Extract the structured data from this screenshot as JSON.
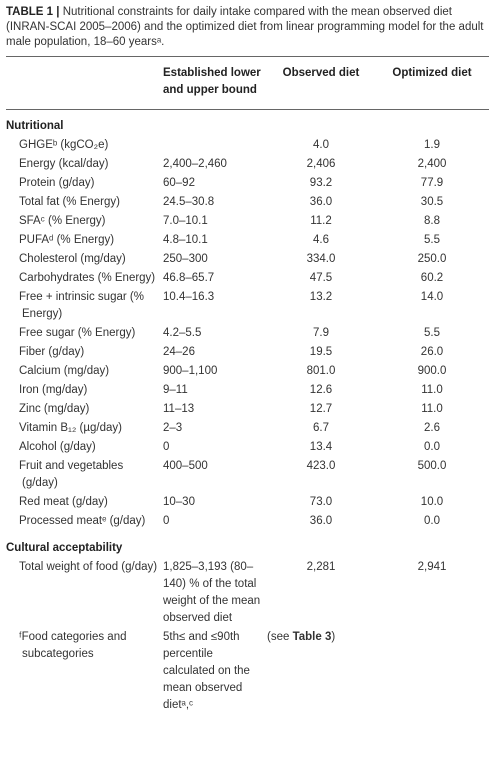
{
  "caption": {
    "label": "TABLE 1 |",
    "text": "Nutritional constraints for daily intake compared with the mean observed diet (INRAN-SCAI 2005–2006) and the optimized diet from linear programming model for the adult male population, 18–60 yearsᵃ."
  },
  "table": {
    "header": [
      "Established lower and upper bound",
      "Observed diet",
      "Optimized diet"
    ],
    "sections": [
      {
        "title": "Nutritional",
        "rows": [
          [
            "GHGEᵇ (kgCO₂e)",
            null,
            "4.0",
            "1.9"
          ],
          [
            "Energy (kcal/day)",
            "2,400–2,460",
            "2,406",
            "2,400"
          ],
          [
            "Protein (g/day)",
            "60–92",
            "93.2",
            "77.9"
          ],
          [
            "Total fat (% Energy)",
            "24.5–30.8",
            "36.0",
            "30.5"
          ],
          [
            "SFAᶜ (% Energy)",
            "7.0–10.1",
            "11.2",
            "8.8"
          ],
          [
            "PUFAᵈ (% Energy)",
            "4.8–10.1",
            "4.6",
            "5.5"
          ],
          [
            "Cholesterol (mg/day)",
            "250–300",
            "334.0",
            "250.0"
          ],
          [
            "Carbohydrates (% Energy)",
            "46.8–65.7",
            "47.5",
            "60.2"
          ],
          [
            "Free + intrinsic sugar (% Energy)",
            "10.4–16.3",
            "13.2",
            "14.0"
          ],
          [
            "Free sugar (% Energy)",
            "4.2–5.5",
            "7.9",
            "5.5"
          ],
          [
            "Fiber (g/day)",
            "24–26",
            "19.5",
            "26.0"
          ],
          [
            "Calcium (mg/day)",
            "900–1,100",
            "801.0",
            "900.0"
          ],
          [
            "Iron (mg/day)",
            "9–11",
            "12.6",
            "11.0"
          ],
          [
            "Zinc (mg/day)",
            "11–13",
            "12.7",
            "11.0"
          ],
          [
            "Vitamin B₁₂ (µg/day)",
            "2–3",
            "6.7",
            "2.6"
          ],
          [
            "Alcohol (g/day)",
            "0",
            "13.4",
            "0.0"
          ],
          [
            "Fruit and vegetables (g/day)",
            "400–500",
            "423.0",
            "500.0"
          ],
          [
            "Red meat (g/day)",
            "10–30",
            "73.0",
            "10.0"
          ],
          [
            "Processed meatᵉ (g/day)",
            "0",
            "36.0",
            "0.0"
          ]
        ]
      },
      {
        "title": "Cultural acceptability",
        "rows": [
          [
            "Total weight of food (g/day)",
            "1,825–3,193 (80–140) % of the total weight of the mean observed diet",
            "2,281",
            "2,941"
          ],
          [
            "ᶠFood categories and subcategories",
            "5th≤ and ≤90th percentile calculated on the mean observed dietᵃ,ᶜ",
            {
              "pre": "(see ",
              "bold": "Table 3",
              "post": ")"
            },
            null
          ]
        ]
      }
    ]
  }
}
